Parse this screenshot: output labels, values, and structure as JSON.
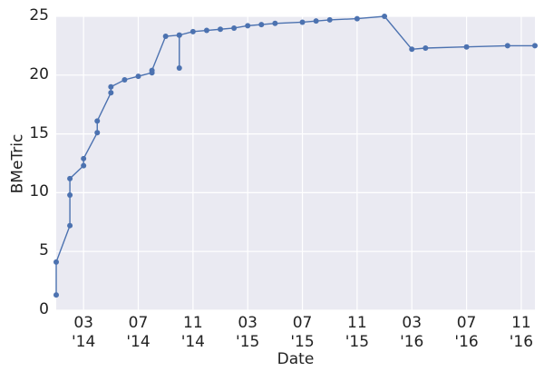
{
  "chart_data": {
    "type": "line",
    "x_label": "Date",
    "y_label": "BMeTric",
    "color": "#4c72b0",
    "grid": true,
    "x": [
      "2014-01",
      "2014-01",
      "2014-02",
      "2014-02",
      "2014-02",
      "2014-03",
      "2014-03",
      "2014-04",
      "2014-04",
      "2014-05",
      "2014-05",
      "2014-06",
      "2014-07",
      "2014-08",
      "2014-08",
      "2014-09",
      "2014-10",
      "2014-10",
      "2014-10",
      "2014-11",
      "2014-12",
      "2015-01",
      "2015-02",
      "2015-03",
      "2015-04",
      "2015-05",
      "2015-07",
      "2015-08",
      "2015-09",
      "2015-11",
      "2016-01",
      "2016-03",
      "2016-04",
      "2016-07",
      "2016-10",
      "2016-12"
    ],
    "values": [
      1.3,
      4.1,
      7.2,
      9.8,
      11.2,
      12.3,
      12.9,
      15.1,
      16.1,
      18.5,
      19.0,
      19.6,
      19.9,
      20.2,
      20.4,
      23.3,
      23.4,
      20.6,
      23.4,
      23.7,
      23.8,
      23.9,
      24.0,
      24.2,
      24.3,
      24.4,
      24.5,
      24.6,
      24.7,
      24.8,
      25.0,
      22.2,
      22.3,
      22.4,
      22.5,
      22.5
    ],
    "xlim": [
      "2014-01",
      "2016-12"
    ],
    "xticks": [
      {
        "value": "2014-03",
        "label": "03\n'14"
      },
      {
        "value": "2014-07",
        "label": "07\n'14"
      },
      {
        "value": "2014-11",
        "label": "11\n'14"
      },
      {
        "value": "2015-03",
        "label": "03\n'15"
      },
      {
        "value": "2015-07",
        "label": "07\n'15"
      },
      {
        "value": "2015-11",
        "label": "11\n'15"
      },
      {
        "value": "2016-03",
        "label": "03\n'16"
      },
      {
        "value": "2016-07",
        "label": "07\n'16"
      },
      {
        "value": "2016-11",
        "label": "11\n'16"
      }
    ],
    "ylim": [
      0,
      25
    ],
    "yticks": [
      0,
      5,
      10,
      15,
      20,
      25
    ]
  }
}
